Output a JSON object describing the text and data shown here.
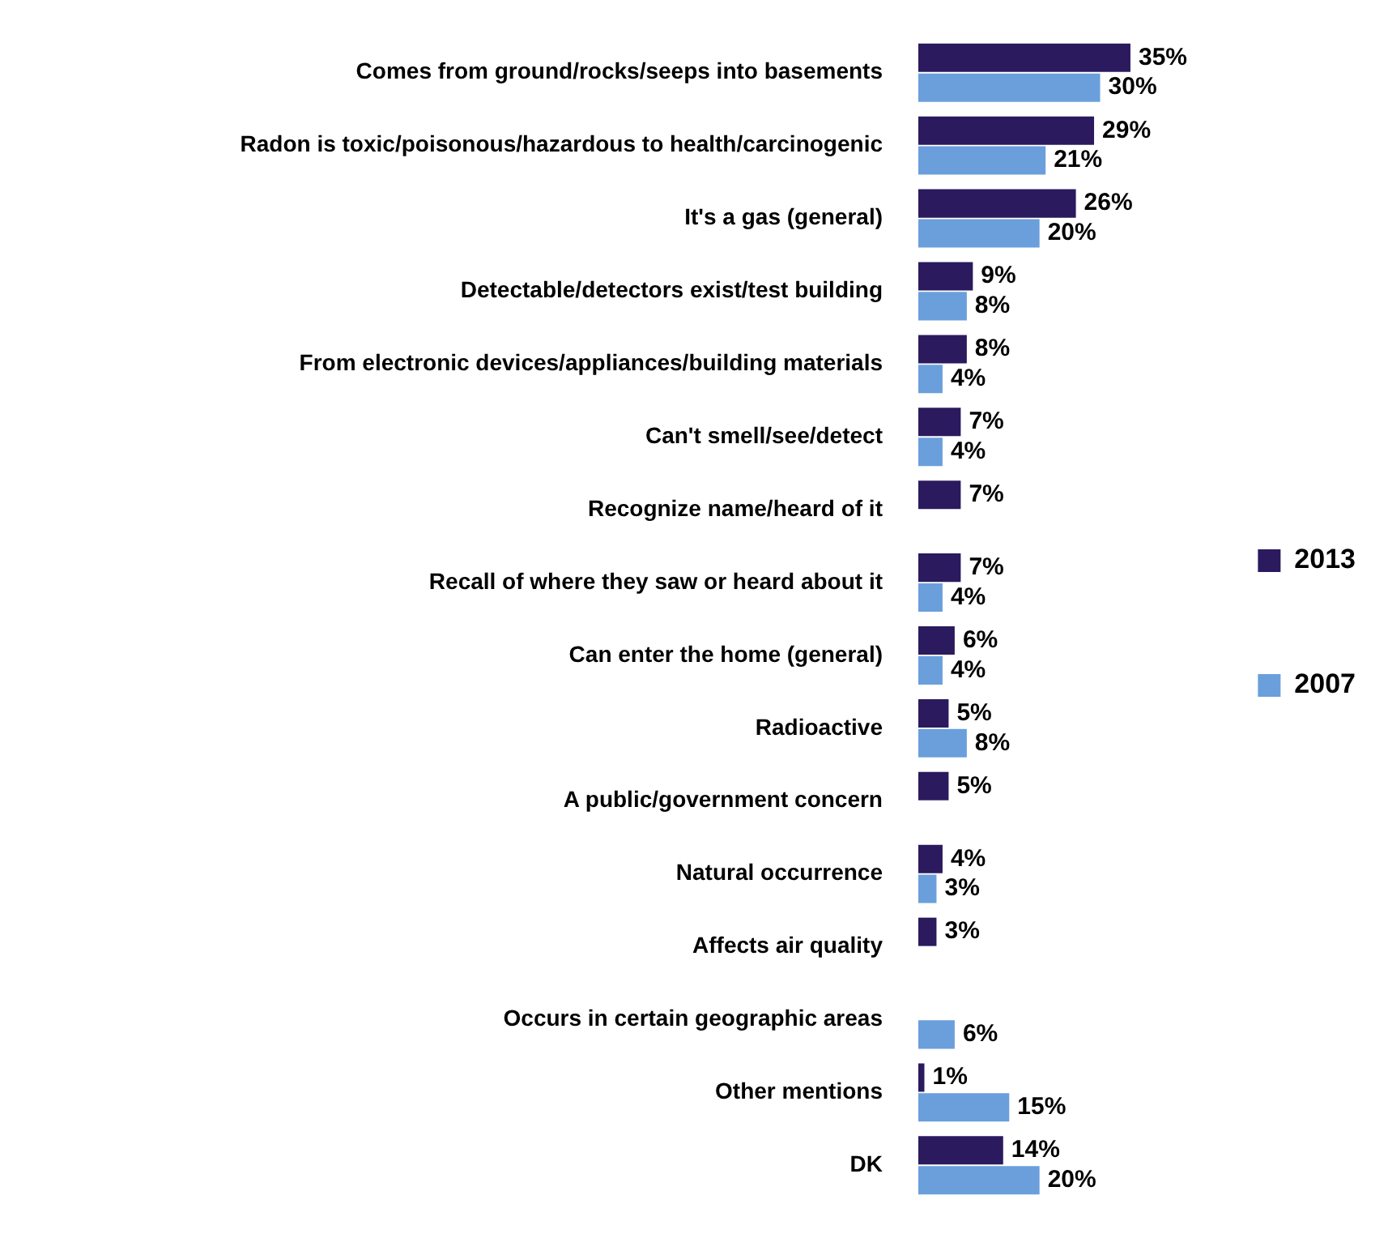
{
  "chart_data": {
    "type": "bar",
    "orientation": "horizontal",
    "legend": "right",
    "categories": [
      "Comes from ground/rocks/seeps into basements",
      "Radon is toxic/poisonous/hazardous to health/carcinogenic",
      "It's a gas (general)",
      "Detectable/detectors exist/test building",
      "From electronic devices/appliances/building materials",
      "Can't smell/see/detect",
      "Recognize name/heard of it",
      "Recall of where they saw or heard about it",
      "Can enter the home (general)",
      "Radioactive",
      "A public/government concern",
      "Natural occurrence",
      "Affects air quality",
      "Occurs in certain geographic areas",
      "Other mentions",
      "DK"
    ],
    "series": [
      {
        "name": "2013",
        "color": "#2b1a5e",
        "values": [
          35,
          29,
          26,
          9,
          8,
          7,
          7,
          7,
          6,
          5,
          5,
          4,
          3,
          null,
          1,
          14
        ],
        "value_labels": [
          "35%",
          "29%",
          "26%",
          "9%",
          "8%",
          "7%",
          "7%",
          "7%",
          "6%",
          "5%",
          "5%",
          "4%",
          "3%",
          null,
          "1%",
          "14%"
        ]
      },
      {
        "name": "2007",
        "color": "#6a9fdc",
        "values": [
          30,
          21,
          20,
          8,
          4,
          4,
          null,
          4,
          4,
          8,
          null,
          3,
          null,
          6,
          15,
          20
        ],
        "value_labels": [
          "30%",
          "21%",
          "20%",
          "8%",
          "4%",
          "4%",
          null,
          "4%",
          "4%",
          "8%",
          null,
          "3%",
          null,
          "6%",
          "15%",
          "20%"
        ]
      }
    ]
  }
}
